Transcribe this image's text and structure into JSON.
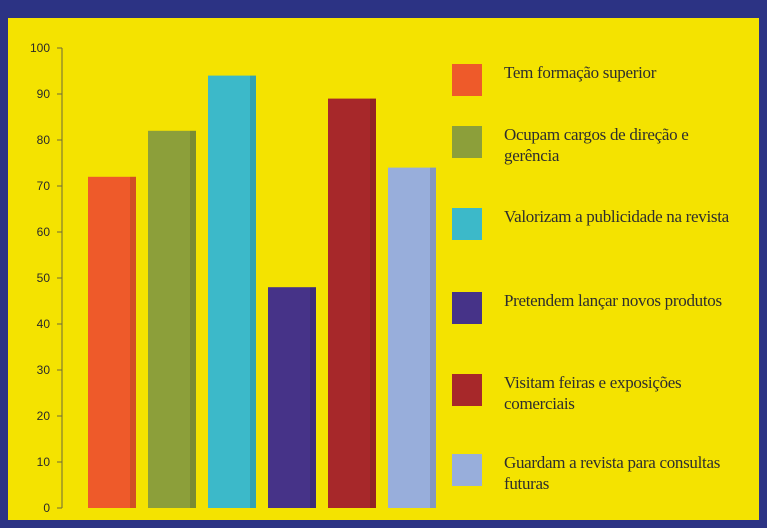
{
  "chart_data": {
    "type": "bar",
    "categories": [
      "Tem formação superior",
      "Ocupam cargos de direção e gerência",
      "Valorizam a publicidade na revista",
      "Pretendem lançar novos produtos",
      "Visitam feiras e exposições comerciais",
      "Guardam a revista para consultas futuras"
    ],
    "values": [
      72,
      82,
      94,
      48,
      89,
      74
    ],
    "colors": [
      "#ee5a2a",
      "#8c9f3a",
      "#3cb9c9",
      "#463388",
      "#a7282a",
      "#98aedb"
    ],
    "ylim": [
      0,
      100
    ],
    "yticks": [
      "0",
      "10",
      "20",
      "30",
      "40",
      "50",
      "60",
      "70",
      "80",
      "90",
      "100"
    ],
    "legend_position": "right",
    "title": "",
    "xlabel": "",
    "ylabel": ""
  },
  "legend": {
    "items": [
      {
        "label": "Tem formação superior"
      },
      {
        "label": "Ocupam cargos de direção e gerência"
      },
      {
        "label": "Valorizam a publicidade na revista"
      },
      {
        "label": "Pretendem lançar novos produtos"
      },
      {
        "label": "Visitam feiras e exposições comerciais"
      },
      {
        "label": "Guardam a revista para consultas futuras"
      }
    ]
  },
  "colors": {
    "background": "#2c3384",
    "panel": "#f4e300"
  }
}
